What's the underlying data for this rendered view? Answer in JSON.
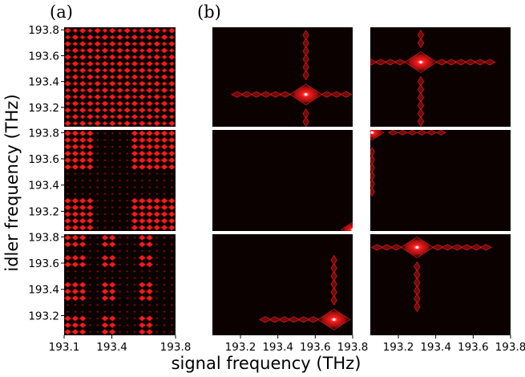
{
  "figure": {
    "panel_a_label": "(a)",
    "panel_b_label": "(b)",
    "xlabel": "signal frequency (THz)",
    "ylabel": "idler frequency (THz)"
  },
  "colors": {
    "background": "#0b0101",
    "peak": "#ff1a1a",
    "glow": "#ffd0d0",
    "edge": "#6e0c0c"
  },
  "chart_data": [
    {
      "type": "heatmap",
      "group": "(a)",
      "description_hidden": false,
      "rows": 3,
      "x_ticks": [
        "193.1",
        "193.4",
        "193.8"
      ],
      "y_ticks": [
        "193.8",
        "193.6",
        "193.4",
        "193.2"
      ],
      "xlim": [
        193.1,
        193.8
      ],
      "ylim": [
        193.05,
        193.82
      ],
      "grid": false,
      "grid_points": 15,
      "row_patterns": [
        {
          "row": 1,
          "pattern": "uniform",
          "x_on": [],
          "y_on": []
        },
        {
          "row": 2,
          "pattern": "block",
          "x_on": [
            [
              193.1,
              193.3
            ],
            [
              193.5,
              193.8
            ]
          ],
          "y_on": [
            [
              193.05,
              193.3
            ],
            [
              193.5,
              193.82
            ]
          ]
        },
        {
          "row": 3,
          "pattern": "block",
          "x_on": [
            [
              193.1,
              193.22
            ],
            [
              193.32,
              193.44
            ],
            [
              193.55,
              193.67
            ]
          ],
          "y_on": [
            [
              193.05,
              193.22
            ],
            [
              193.32,
              193.44
            ],
            [
              193.55,
              193.67
            ],
            [
              193.74,
              193.82
            ]
          ]
        }
      ]
    },
    {
      "type": "heatmap",
      "group": "(b)",
      "rows": 3,
      "columns": 2,
      "x_ticks": [
        "193.2",
        "193.4",
        "193.6",
        "193.8"
      ],
      "xlim": [
        193.05,
        193.8
      ],
      "ylim": [
        193.05,
        193.82
      ],
      "grid": false,
      "peaks": [
        {
          "row": 1,
          "col": 1,
          "x": 193.55,
          "y": 193.3,
          "weight": 1.0,
          "streak_x": true,
          "streak_y": true
        },
        {
          "row": 1,
          "col": 2,
          "x": 193.32,
          "y": 193.55,
          "weight": 1.0,
          "streak_x": true,
          "streak_y": true
        },
        {
          "row": 2,
          "col": 1,
          "x": 193.8,
          "y": 193.06,
          "weight": 0.6,
          "streak_x": false,
          "streak_y": false
        },
        {
          "row": 2,
          "col": 2,
          "x": 193.06,
          "y": 193.8,
          "weight": 0.6,
          "streak_x": true,
          "streak_y": true
        },
        {
          "row": 3,
          "col": 1,
          "x": 193.7,
          "y": 193.17,
          "weight": 1.0,
          "streak_x": true,
          "streak_y": true
        },
        {
          "row": 3,
          "col": 2,
          "x": 193.3,
          "y": 193.72,
          "weight": 1.0,
          "streak_x": true,
          "streak_y": true
        }
      ]
    }
  ]
}
